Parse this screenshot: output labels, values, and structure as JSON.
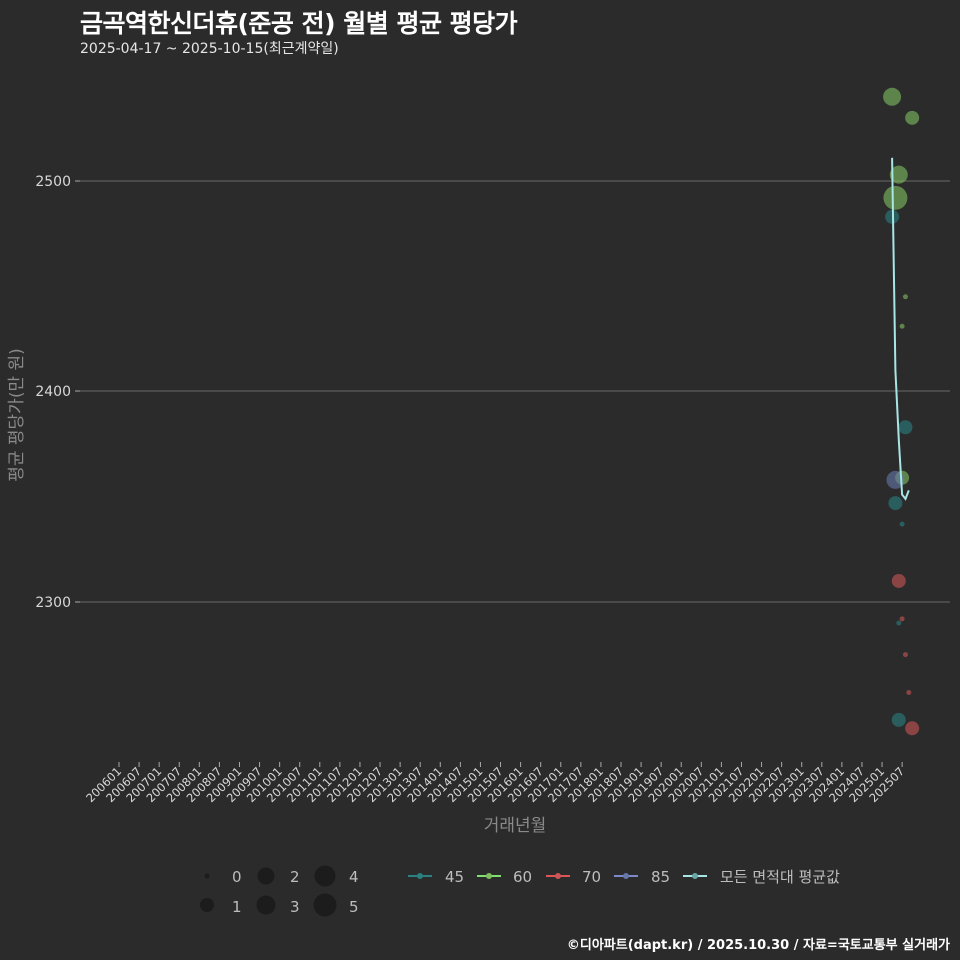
{
  "header": {
    "title": "금곡역한신더휴(준공 전) 월별 평균 평당가",
    "subtitle": "2025-04-17 ~ 2025-10-15(최근계약일)"
  },
  "caption": "©디아파트(dapt.kr) / 2025.10.30 / 자료=국토교통부 실거래가",
  "colors": {
    "background": "#2b2b2b",
    "grid": "#6a6a6a",
    "45": "#2a7f7f",
    "60": "#7fbf5f",
    "70": "#cc5555",
    "85": "#6677aa",
    "avg": "#a8e6e6"
  },
  "chart_data": {
    "type": "scatter",
    "title": "금곡역한신더휴(준공 전) 월별 평균 평당가",
    "subtitle": "2025-04-17 ~ 2025-10-15(최근계약일)",
    "xlabel": "거래년월",
    "ylabel": "평균 평당가(만 원)",
    "ylim": [
      2225,
      2575
    ],
    "yticks": [
      2300,
      2400,
      2500
    ],
    "grid": true,
    "x_tick_labels": [
      "200601",
      "200607",
      "200701",
      "200707",
      "200801",
      "200807",
      "200901",
      "200907",
      "201001",
      "201007",
      "201101",
      "201107",
      "201201",
      "201207",
      "201301",
      "201307",
      "201401",
      "201407",
      "201501",
      "201507",
      "201601",
      "201607",
      "201701",
      "201707",
      "201801",
      "201807",
      "201901",
      "201907",
      "202001",
      "202007",
      "202101",
      "202107",
      "202201",
      "202207",
      "202301",
      "202307",
      "202401",
      "202407",
      "202501",
      "202507"
    ],
    "size_legend": {
      "title": "",
      "values": [
        0,
        1,
        2,
        3,
        4,
        5
      ]
    },
    "color_legend": [
      "45",
      "60",
      "70",
      "85",
      "모든 면적대 평균값"
    ],
    "legend_position": "bottom",
    "series": [
      {
        "name": "45",
        "points": [
          {
            "x": "202504",
            "y": 2483,
            "size": 2
          },
          {
            "x": "202508",
            "y": 2383,
            "size": 2
          },
          {
            "x": "202505",
            "y": 2347,
            "size": 2
          },
          {
            "x": "202507",
            "y": 2337,
            "size": 0
          },
          {
            "x": "202506",
            "y": 2290,
            "size": 0
          },
          {
            "x": "202506",
            "y": 2244,
            "size": 2
          }
        ]
      },
      {
        "name": "60",
        "points": [
          {
            "x": "202504",
            "y": 2540,
            "size": 3
          },
          {
            "x": "202510",
            "y": 2530,
            "size": 2
          },
          {
            "x": "202506",
            "y": 2503,
            "size": 3
          },
          {
            "x": "202505",
            "y": 2492,
            "size": 5
          },
          {
            "x": "202508",
            "y": 2445,
            "size": 0
          },
          {
            "x": "202507",
            "y": 2431,
            "size": 0
          },
          {
            "x": "202507",
            "y": 2359,
            "size": 2
          }
        ]
      },
      {
        "name": "70",
        "points": [
          {
            "x": "202506",
            "y": 2310,
            "size": 2
          },
          {
            "x": "202507",
            "y": 2292,
            "size": 0
          },
          {
            "x": "202508",
            "y": 2275,
            "size": 0
          },
          {
            "x": "202509",
            "y": 2257,
            "size": 0
          },
          {
            "x": "202510",
            "y": 2240,
            "size": 2
          }
        ]
      },
      {
        "name": "85",
        "points": [
          {
            "x": "202505",
            "y": 2358,
            "size": 3
          }
        ]
      },
      {
        "name": "모든 면적대 평균값",
        "type": "line",
        "points": [
          {
            "x": "202504",
            "y": 2511
          },
          {
            "x": "202505",
            "y": 2410
          },
          {
            "x": "202506",
            "y": 2377
          },
          {
            "x": "202507",
            "y": 2351
          },
          {
            "x": "202508",
            "y": 2349
          },
          {
            "x": "202509",
            "y": 2353
          }
        ]
      }
    ]
  },
  "axis": {
    "x_title": "거래년월",
    "y_title": "평균 평당가(만 원)",
    "y_labels": [
      "2500",
      "2400",
      "2300"
    ]
  },
  "legend": {
    "sizes": [
      "0",
      "1",
      "2",
      "3",
      "4",
      "5"
    ],
    "colors": [
      "45",
      "60",
      "70",
      "85",
      "모든 면적대 평균값"
    ]
  }
}
